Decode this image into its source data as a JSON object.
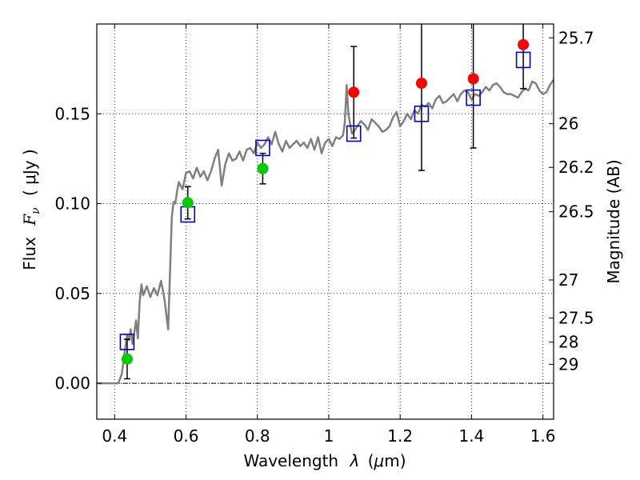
{
  "chart_data": {
    "type": "scatter",
    "title": "",
    "xlabel": "Wavelength  λ (μm)",
    "ylabel": "Flux  F_ν ( μJy )",
    "ylabel_parts": {
      "main": "Flux",
      "symbol": "F",
      "subscript": "ν",
      "unit": "( μJy )"
    },
    "xlabel_parts": {
      "main": "Wavelength",
      "symbol": "λ",
      "unit_open": "(",
      "unit_mu": "μ",
      "unit_rest": "m)"
    },
    "y2label": "Magnitude (AB)",
    "xlim": [
      0.35,
      1.63
    ],
    "ylim": [
      -0.02,
      0.2
    ],
    "grid": true,
    "xticks": [
      {
        "value": 0.4,
        "label": "0.4"
      },
      {
        "value": 0.6,
        "label": "0.6"
      },
      {
        "value": 0.8,
        "label": "0.8"
      },
      {
        "value": 1.0,
        "label": "1"
      },
      {
        "value": 1.2,
        "label": "1.2"
      },
      {
        "value": 1.4,
        "label": "1.4"
      },
      {
        "value": 1.6,
        "label": "1.6"
      }
    ],
    "yticks": [
      {
        "value": 0.0,
        "label": "0.00"
      },
      {
        "value": 0.05,
        "label": "0.05"
      },
      {
        "value": 0.1,
        "label": "0.10"
      },
      {
        "value": 0.15,
        "label": "0.15"
      }
    ],
    "y2ticks": [
      {
        "flux": 0.1923,
        "label": "25.7"
      },
      {
        "flux": 0.1445,
        "label": "26"
      },
      {
        "flux": 0.1202,
        "label": "26.2"
      },
      {
        "flux": 0.0955,
        "label": "26.5"
      },
      {
        "flux": 0.0575,
        "label": "27"
      },
      {
        "flux": 0.0363,
        "label": "27.5"
      },
      {
        "flux": 0.0229,
        "label": "28"
      },
      {
        "flux": 0.0105,
        "label": "29"
      }
    ],
    "series": [
      {
        "name": "model spectrum",
        "kind": "line",
        "color": "#808080",
        "points": [
          [
            0.35,
            0.0
          ],
          [
            0.36,
            0.0
          ],
          [
            0.37,
            0.0
          ],
          [
            0.38,
            0.0
          ],
          [
            0.39,
            0.0
          ],
          [
            0.4,
            0.0
          ],
          [
            0.41,
            0.0
          ],
          [
            0.42,
            0.005
          ],
          [
            0.425,
            0.013
          ],
          [
            0.43,
            0.02
          ],
          [
            0.435,
            0.027
          ],
          [
            0.44,
            0.024
          ],
          [
            0.445,
            0.03
          ],
          [
            0.45,
            0.022
          ],
          [
            0.455,
            0.028
          ],
          [
            0.46,
            0.035
          ],
          [
            0.465,
            0.025
          ],
          [
            0.47,
            0.045
          ],
          [
            0.475,
            0.055
          ],
          [
            0.48,
            0.049
          ],
          [
            0.49,
            0.054
          ],
          [
            0.5,
            0.048
          ],
          [
            0.51,
            0.053
          ],
          [
            0.52,
            0.049
          ],
          [
            0.53,
            0.057
          ],
          [
            0.535,
            0.052
          ],
          [
            0.54,
            0.046
          ],
          [
            0.545,
            0.038
          ],
          [
            0.55,
            0.03
          ],
          [
            0.555,
            0.06
          ],
          [
            0.56,
            0.092
          ],
          [
            0.565,
            0.101
          ],
          [
            0.57,
            0.1
          ],
          [
            0.575,
            0.107
          ],
          [
            0.58,
            0.112
          ],
          [
            0.59,
            0.108
          ],
          [
            0.6,
            0.117
          ],
          [
            0.61,
            0.118
          ],
          [
            0.62,
            0.114
          ],
          [
            0.63,
            0.12
          ],
          [
            0.64,
            0.115
          ],
          [
            0.65,
            0.118
          ],
          [
            0.66,
            0.113
          ],
          [
            0.67,
            0.118
          ],
          [
            0.68,
            0.125
          ],
          [
            0.69,
            0.13
          ],
          [
            0.7,
            0.11
          ],
          [
            0.71,
            0.122
          ],
          [
            0.72,
            0.128
          ],
          [
            0.73,
            0.124
          ],
          [
            0.74,
            0.125
          ],
          [
            0.75,
            0.129
          ],
          [
            0.76,
            0.124
          ],
          [
            0.77,
            0.13
          ],
          [
            0.78,
            0.131
          ],
          [
            0.79,
            0.128
          ],
          [
            0.8,
            0.134
          ],
          [
            0.81,
            0.131
          ],
          [
            0.82,
            0.133
          ],
          [
            0.83,
            0.137
          ],
          [
            0.84,
            0.133
          ],
          [
            0.85,
            0.14
          ],
          [
            0.86,
            0.133
          ],
          [
            0.87,
            0.129
          ],
          [
            0.88,
            0.135
          ],
          [
            0.89,
            0.131
          ],
          [
            0.9,
            0.133
          ],
          [
            0.91,
            0.135
          ],
          [
            0.92,
            0.132
          ],
          [
            0.93,
            0.134
          ],
          [
            0.94,
            0.131
          ],
          [
            0.95,
            0.136
          ],
          [
            0.96,
            0.13
          ],
          [
            0.97,
            0.137
          ],
          [
            0.98,
            0.128
          ],
          [
            0.99,
            0.134
          ],
          [
            1.0,
            0.136
          ],
          [
            1.01,
            0.132
          ],
          [
            1.02,
            0.137
          ],
          [
            1.03,
            0.136
          ],
          [
            1.04,
            0.138
          ],
          [
            1.045,
            0.145
          ],
          [
            1.05,
            0.166
          ],
          [
            1.055,
            0.15
          ],
          [
            1.06,
            0.144
          ],
          [
            1.065,
            0.139
          ],
          [
            1.07,
            0.14
          ],
          [
            1.08,
            0.143
          ],
          [
            1.09,
            0.146
          ],
          [
            1.1,
            0.144
          ],
          [
            1.11,
            0.141
          ],
          [
            1.12,
            0.147
          ],
          [
            1.13,
            0.145
          ],
          [
            1.14,
            0.143
          ],
          [
            1.15,
            0.14
          ],
          [
            1.16,
            0.141
          ],
          [
            1.17,
            0.143
          ],
          [
            1.18,
            0.148
          ],
          [
            1.19,
            0.151
          ],
          [
            1.2,
            0.143
          ],
          [
            1.21,
            0.146
          ],
          [
            1.22,
            0.15
          ],
          [
            1.23,
            0.147
          ],
          [
            1.24,
            0.152
          ],
          [
            1.25,
            0.15
          ],
          [
            1.26,
            0.155
          ],
          [
            1.27,
            0.154
          ],
          [
            1.28,
            0.156
          ],
          [
            1.29,
            0.153
          ],
          [
            1.3,
            0.158
          ],
          [
            1.31,
            0.16
          ],
          [
            1.32,
            0.156
          ],
          [
            1.33,
            0.157
          ],
          [
            1.34,
            0.159
          ],
          [
            1.35,
            0.161
          ],
          [
            1.36,
            0.157
          ],
          [
            1.37,
            0.161
          ],
          [
            1.38,
            0.163
          ],
          [
            1.39,
            0.162
          ],
          [
            1.4,
            0.158
          ],
          [
            1.41,
            0.161
          ],
          [
            1.42,
            0.16
          ],
          [
            1.43,
            0.162
          ],
          [
            1.44,
            0.165
          ],
          [
            1.45,
            0.163
          ],
          [
            1.46,
            0.166
          ],
          [
            1.47,
            0.167
          ],
          [
            1.48,
            0.165
          ],
          [
            1.49,
            0.162
          ],
          [
            1.5,
            0.161
          ],
          [
            1.51,
            0.161
          ],
          [
            1.52,
            0.16
          ],
          [
            1.53,
            0.159
          ],
          [
            1.54,
            0.162
          ],
          [
            1.55,
            0.164
          ],
          [
            1.56,
            0.163
          ],
          [
            1.57,
            0.168
          ],
          [
            1.58,
            0.167
          ],
          [
            1.59,
            0.163
          ],
          [
            1.6,
            0.161
          ],
          [
            1.61,
            0.162
          ],
          [
            1.62,
            0.166
          ],
          [
            1.63,
            0.169
          ]
        ]
      },
      {
        "name": "model photometry",
        "kind": "open-square",
        "color": "#0000cc",
        "points": [
          [
            0.435,
            0.023
          ],
          [
            0.605,
            0.094
          ],
          [
            0.815,
            0.131
          ],
          [
            1.07,
            0.139
          ],
          [
            1.26,
            0.15
          ],
          [
            1.405,
            0.159
          ],
          [
            1.545,
            0.18
          ]
        ]
      },
      {
        "name": "observed (green)",
        "kind": "filled-circle",
        "color": "#00cc00",
        "points": [
          [
            0.435,
            0.0135
          ],
          [
            0.605,
            0.1005
          ],
          [
            0.815,
            0.1195
          ]
        ],
        "errors": [
          0.011,
          0.009,
          0.0085
        ]
      },
      {
        "name": "observed (red)",
        "kind": "filled-circle",
        "color": "#ff0000",
        "points": [
          [
            1.07,
            0.162
          ],
          [
            1.26,
            0.167
          ],
          [
            1.405,
            0.1695
          ],
          [
            1.545,
            0.1885
          ]
        ],
        "errors": [
          0.0255,
          0.0485,
          0.0385,
          0.0245
        ]
      }
    ]
  }
}
